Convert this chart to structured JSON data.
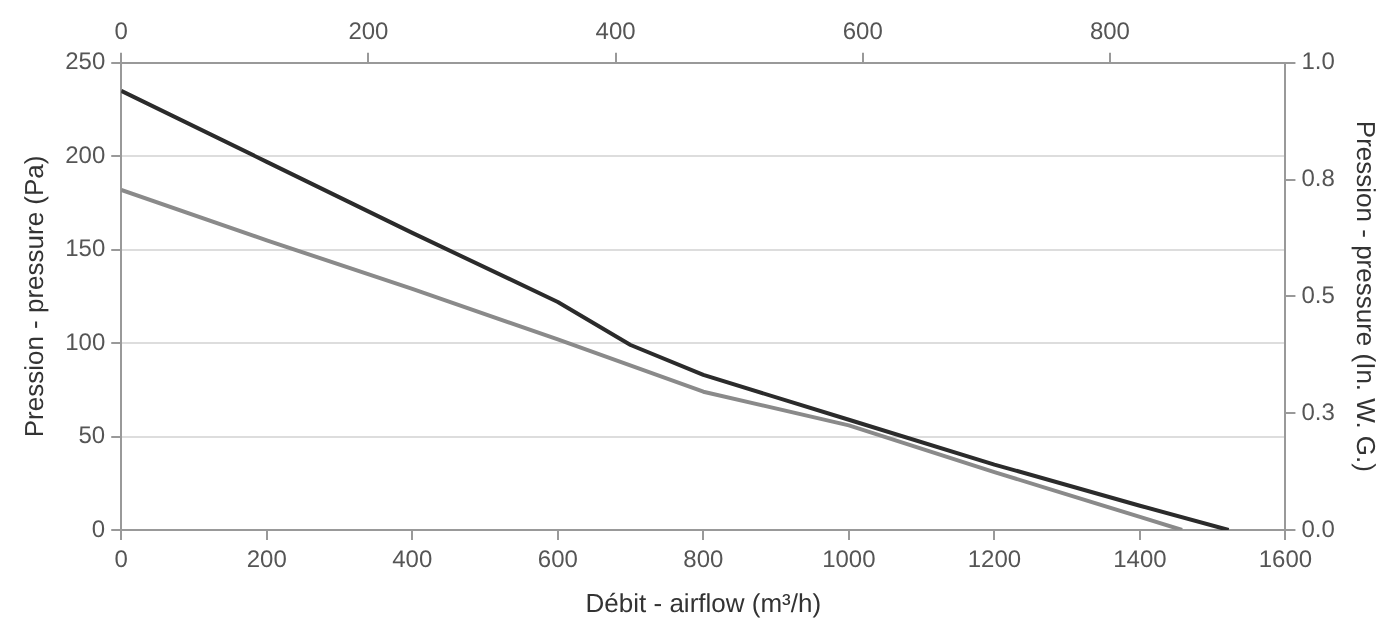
{
  "chart_data": {
    "type": "line",
    "xlabel": "Débit - airflow (m³/h)",
    "ylabel": "Pression - pressure (Pa)",
    "y2label": "Pression - pressure (In. W. G.)",
    "xlim": [
      0,
      1600
    ],
    "xticks": [
      0,
      200,
      400,
      600,
      800,
      1000,
      1200,
      1400,
      1600
    ],
    "x2lim": [
      0,
      942
    ],
    "x2ticks": [
      0,
      200,
      400,
      600,
      800
    ],
    "ylim": [
      0,
      250
    ],
    "yticks": [
      0,
      50,
      100,
      150,
      200,
      250
    ],
    "y2lim": [
      0,
      1
    ],
    "y2ticks": [
      {
        "value": 0,
        "label": "0.0"
      },
      {
        "value": 0.25,
        "label": "0.3"
      },
      {
        "value": 0.5,
        "label": "0.5"
      },
      {
        "value": 0.75,
        "label": "0.8"
      },
      {
        "value": 1,
        "label": "1.0"
      }
    ],
    "grid": "y",
    "legend": false,
    "marker": "none",
    "line_style": "solid",
    "series": [
      {
        "color": "#2b2b2b",
        "x": [
          0,
          200,
          400,
          600,
          700,
          800,
          1000,
          1200,
          1400,
          1522
        ],
        "values": [
          235,
          197,
          159,
          122,
          99,
          83,
          59,
          35,
          13,
          0
        ]
      },
      {
        "color": "#8a8a8a",
        "x": [
          0,
          200,
          400,
          600,
          800,
          1000,
          1200,
          1400,
          1458
        ],
        "values": [
          182,
          155,
          129,
          102,
          74,
          56,
          31,
          7,
          0
        ]
      }
    ]
  }
}
